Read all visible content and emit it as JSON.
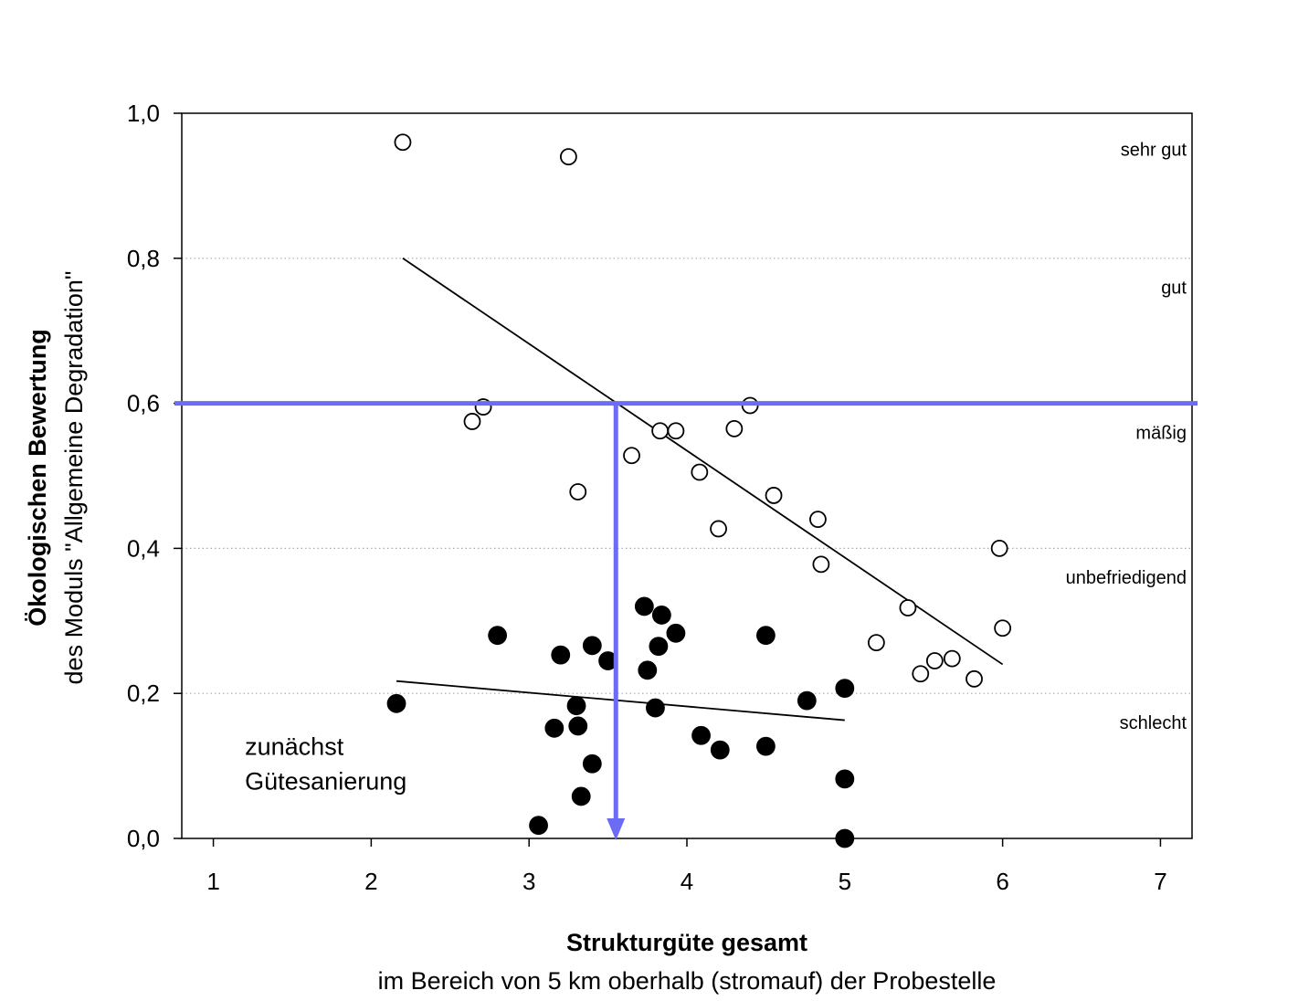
{
  "chart_data": {
    "type": "scatter",
    "ylabel_bold": "Ökologischen Bewertung",
    "ylabel_rest": "des Moduls \"Allgemeine Degradation\"",
    "xlabel_bold": "Strukturgüte gesamt",
    "xlabel_rest": "im Bereich von 5 km oberhalb (stromauf) der Probestelle",
    "xlim": [
      0.8,
      7.2
    ],
    "ylim": [
      0.0,
      1.0
    ],
    "x_ticks": [
      1,
      2,
      3,
      4,
      5,
      6,
      7
    ],
    "y_ticks": [
      0.0,
      0.2,
      0.4,
      0.6,
      0.8,
      1.0
    ],
    "x_tick_labels": [
      "1",
      "2",
      "3",
      "4",
      "5",
      "6",
      "7"
    ],
    "y_tick_labels": [
      "0,0",
      "0,2",
      "0,4",
      "0,6",
      "0,8",
      "1,0"
    ],
    "grid_y": [
      0.2,
      0.4,
      0.6,
      0.8
    ],
    "class_labels": [
      {
        "label": "sehr gut",
        "y": 0.95
      },
      {
        "label": "gut",
        "y": 0.76
      },
      {
        "label": "mäßig",
        "y": 0.56
      },
      {
        "label": "unbefriedigend",
        "y": 0.36
      },
      {
        "label": "schlecht",
        "y": 0.16
      }
    ],
    "series": [
      {
        "marker": "open-circle",
        "points": [
          [
            2.2,
            0.96
          ],
          [
            3.25,
            0.94
          ],
          [
            2.64,
            0.575
          ],
          [
            2.71,
            0.595
          ],
          [
            3.31,
            0.478
          ],
          [
            3.65,
            0.528
          ],
          [
            3.83,
            0.562
          ],
          [
            3.93,
            0.562
          ],
          [
            4.08,
            0.505
          ],
          [
            4.2,
            0.427
          ],
          [
            4.3,
            0.565
          ],
          [
            4.4,
            0.597
          ],
          [
            4.55,
            0.473
          ],
          [
            4.83,
            0.44
          ],
          [
            4.85,
            0.378
          ],
          [
            5.2,
            0.27
          ],
          [
            5.4,
            0.318
          ],
          [
            5.48,
            0.227
          ],
          [
            5.57,
            0.245
          ],
          [
            5.68,
            0.248
          ],
          [
            5.82,
            0.22
          ],
          [
            5.98,
            0.4
          ],
          [
            6.0,
            0.29
          ]
        ],
        "trend": [
          [
            2.2,
            0.8
          ],
          [
            6.0,
            0.24
          ]
        ]
      },
      {
        "marker": "filled-circle",
        "points": [
          [
            2.16,
            0.186
          ],
          [
            2.8,
            0.28
          ],
          [
            3.06,
            0.018
          ],
          [
            3.16,
            0.152
          ],
          [
            3.2,
            0.253
          ],
          [
            3.3,
            0.183
          ],
          [
            3.31,
            0.155
          ],
          [
            3.33,
            0.058
          ],
          [
            3.4,
            0.266
          ],
          [
            3.4,
            0.103
          ],
          [
            3.5,
            0.245
          ],
          [
            3.73,
            0.32
          ],
          [
            3.75,
            0.232
          ],
          [
            3.8,
            0.18
          ],
          [
            3.82,
            0.265
          ],
          [
            3.84,
            0.308
          ],
          [
            3.93,
            0.283
          ],
          [
            4.09,
            0.142
          ],
          [
            4.21,
            0.122
          ],
          [
            4.5,
            0.28
          ],
          [
            4.5,
            0.127
          ],
          [
            4.76,
            0.19
          ],
          [
            5.0,
            0.207
          ],
          [
            5.0,
            0.082
          ],
          [
            5.0,
            0.0
          ]
        ],
        "trend": [
          [
            2.16,
            0.217
          ],
          [
            5.0,
            0.163
          ]
        ]
      }
    ],
    "reference": {
      "color": "#6b6bf5",
      "threshold_y": 0.6,
      "intersect_x": 3.55
    },
    "annotation": {
      "lines": [
        "zunächst",
        "Gütesanierung"
      ],
      "x": 1.2,
      "y": 0.105
    }
  }
}
